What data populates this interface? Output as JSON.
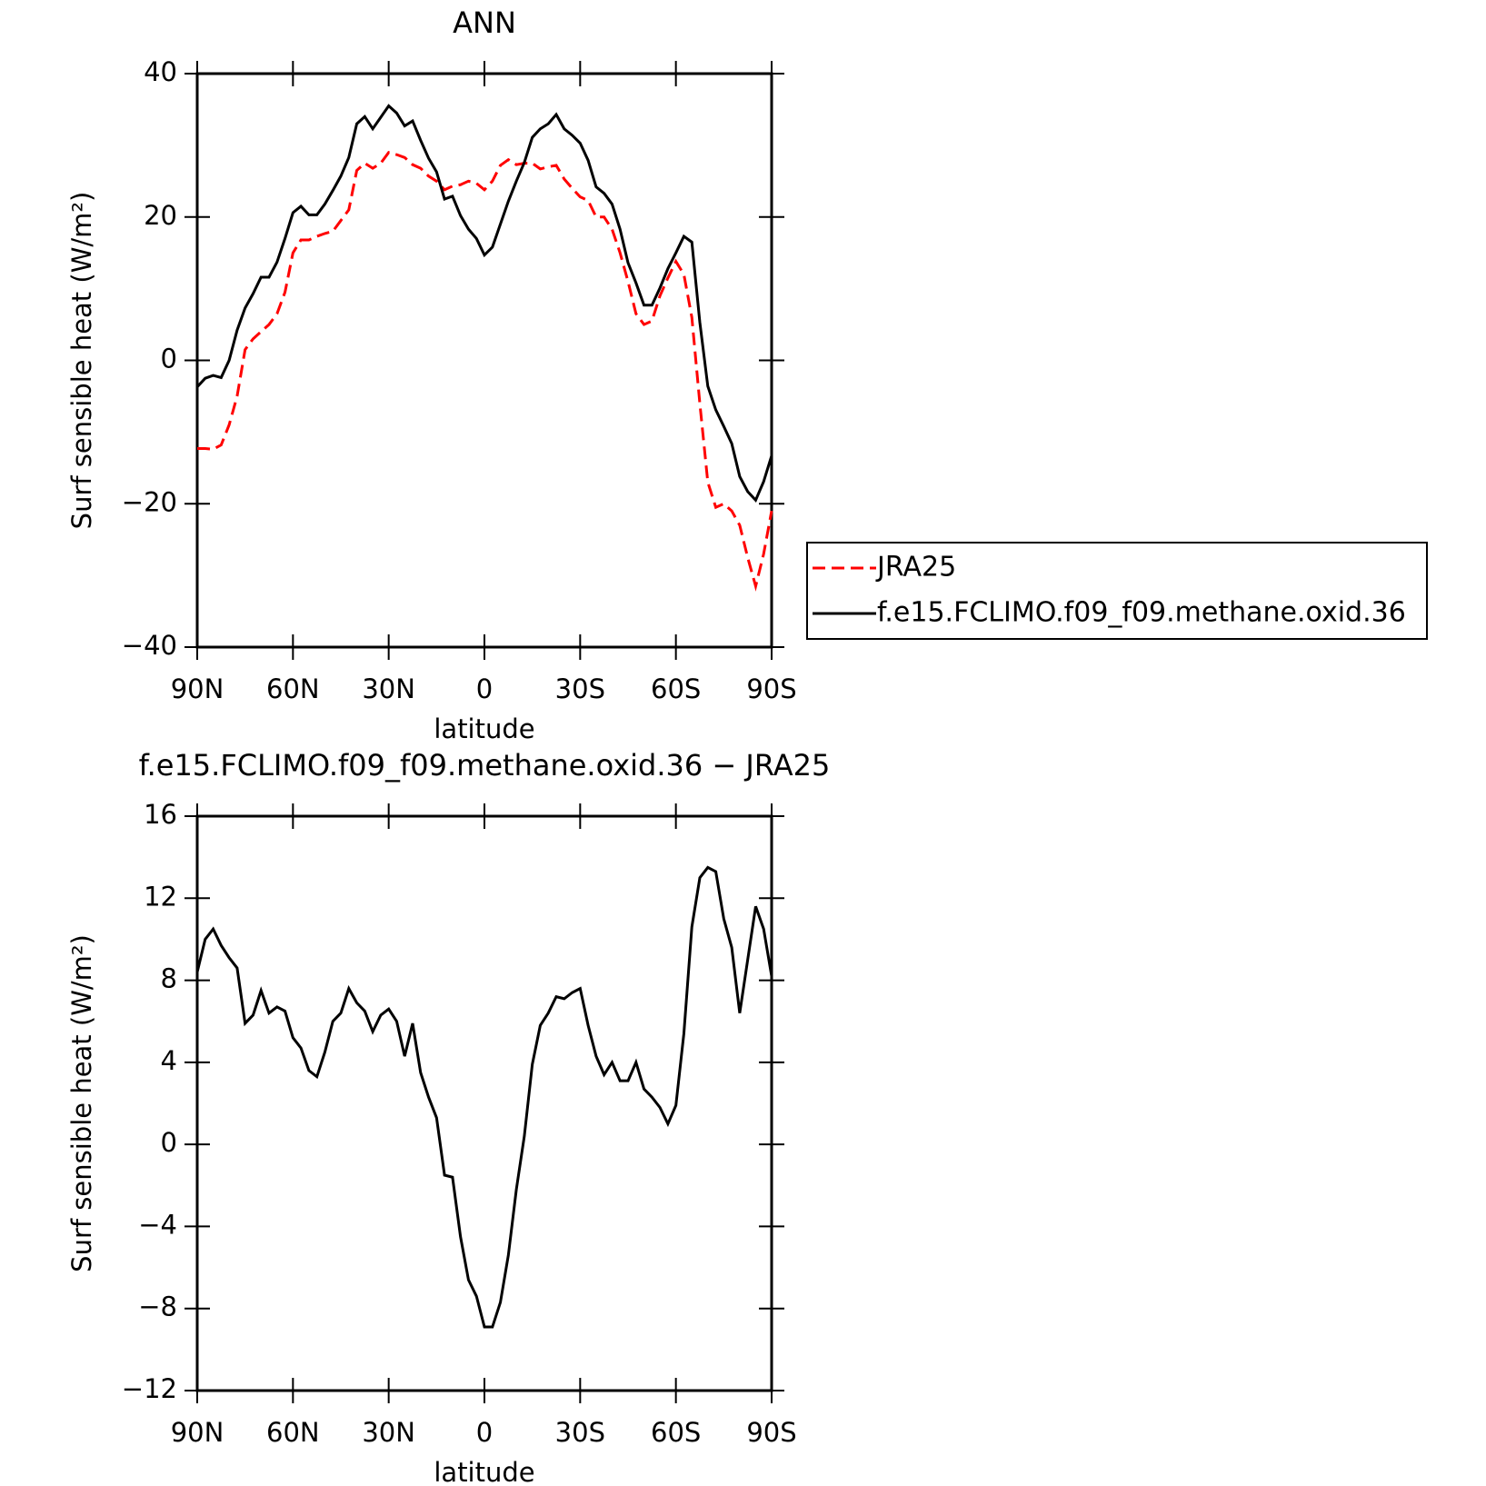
{
  "chart_data": [
    {
      "type": "line",
      "title": "ANN",
      "xlabel": "latitude",
      "ylabel": "Surf sensible heat (W/m²)",
      "x": [
        90,
        87.5,
        85,
        82.5,
        80,
        77.5,
        75,
        72.5,
        70,
        67.5,
        65,
        62.5,
        60,
        57.5,
        55,
        52.5,
        50,
        47.5,
        45,
        42.5,
        40,
        37.5,
        35,
        32.5,
        30,
        27.5,
        25,
        22.5,
        20,
        17.5,
        15,
        12.5,
        10,
        7.5,
        5,
        2.5,
        0,
        -2.5,
        -5,
        -7.5,
        -10,
        -12.5,
        -15,
        -17.5,
        -20,
        -22.5,
        -25,
        -27.5,
        -30,
        -32.5,
        -35,
        -37.5,
        -40,
        -42.5,
        -45,
        -47.5,
        -50,
        -52.5,
        -55,
        -57.5,
        -60,
        -62.5,
        -65,
        -67.5,
        -70,
        -72.5,
        -75,
        -77.5,
        -80,
        -82.5,
        -85,
        -87.5,
        -90
      ],
      "series": [
        {
          "name": "JRA25",
          "color": "#ff0000",
          "style": "dashed",
          "values": [
            -12.3,
            -12.3,
            -12.4,
            -11.8,
            -9,
            -5,
            1.5,
            3,
            4,
            5,
            6.5,
            9.5,
            15,
            16.8,
            16.8,
            17.3,
            17.7,
            18,
            19.5,
            21,
            26.5,
            27.5,
            26.8,
            27.5,
            29,
            28.7,
            28.3,
            27.3,
            26.8,
            25.7,
            25,
            23.8,
            24.3,
            24.5,
            25,
            24.7,
            23.8,
            25,
            27.2,
            28,
            27.3,
            27.5,
            27.5,
            26.7,
            27,
            27.2,
            25.3,
            24,
            22.8,
            22.3,
            20,
            20,
            18.3,
            15,
            11,
            6.5,
            5,
            5.5,
            9,
            11.5,
            13.8,
            12,
            6,
            -6,
            -17,
            -20.5,
            -20,
            -21,
            -23,
            -27.5,
            -31.5,
            -27,
            -21
          ]
        },
        {
          "name": "f.e15.FCLIMO.f09_f09.methane.oxid.36",
          "color": "#000000",
          "style": "solid",
          "values": [
            -3.7,
            -2.5,
            -2.1,
            -2.4,
            0,
            4.2,
            7.3,
            9.3,
            11.6,
            11.6,
            13.7,
            17,
            20.6,
            21.5,
            20.3,
            20.3,
            21.8,
            23.7,
            25.7,
            28.3,
            33,
            34,
            32.3,
            33.9,
            35.5,
            34.5,
            32.7,
            33.4,
            30.7,
            28.2,
            26.3,
            22.5,
            22.9,
            20.2,
            18.3,
            17,
            14.7,
            15.8,
            19,
            22.2,
            25,
            27.6,
            31.1,
            32.3,
            33,
            34.3,
            32.3,
            31.4,
            30.3,
            27.9,
            24.2,
            23.3,
            21.8,
            18.3,
            13.6,
            10.8,
            7.7,
            7.7,
            10.1,
            12.8,
            15,
            17.3,
            16.5,
            5.3,
            -3.6,
            -6.9,
            -9.2,
            -11.6,
            -16.2,
            -18.3,
            -19.5,
            -16.9,
            -13.3
          ]
        }
      ],
      "xlim": [
        90,
        -90
      ],
      "xticks": [
        {
          "value": 90,
          "label": "90N"
        },
        {
          "value": 60,
          "label": "60N"
        },
        {
          "value": 30,
          "label": "30N"
        },
        0,
        {
          "value": -30,
          "label": "30S"
        },
        {
          "value": -60,
          "label": "60S"
        },
        {
          "value": -90,
          "label": "90S"
        }
      ],
      "ylim": [
        -40,
        40
      ],
      "yticks": [
        {
          "value": -40,
          "label": "−40"
        },
        {
          "value": -20,
          "label": "−20"
        },
        0,
        20,
        40
      ],
      "legend": "right"
    },
    {
      "type": "line",
      "title": "f.e15.FCLIMO.f09_f09.methane.oxid.36 − JRA25",
      "xlabel": "latitude",
      "ylabel": "Surf sensible heat (W/m²)",
      "x": [
        90,
        87.5,
        85,
        82.5,
        80,
        77.5,
        75,
        72.5,
        70,
        67.5,
        65,
        62.5,
        60,
        57.5,
        55,
        52.5,
        50,
        47.5,
        45,
        42.5,
        40,
        37.5,
        35,
        32.5,
        30,
        27.5,
        25,
        22.5,
        20,
        17.5,
        15,
        12.5,
        10,
        7.5,
        5,
        2.5,
        0,
        -2.5,
        -5,
        -7.5,
        -10,
        -12.5,
        -15,
        -17.5,
        -20,
        -22.5,
        -25,
        -27.5,
        -30,
        -32.5,
        -35,
        -37.5,
        -40,
        -42.5,
        -45,
        -47.5,
        -50,
        -52.5,
        -55,
        -57.5,
        -60,
        -62.5,
        -65,
        -67.5,
        -70,
        -72.5,
        -75,
        -77.5,
        -80,
        -82.5,
        -85,
        -87.5,
        -90
      ],
      "series": [
        {
          "color": "#000000",
          "style": "solid",
          "values": [
            8.4,
            10,
            10.5,
            9.7,
            9.1,
            8.6,
            5.9,
            6.3,
            7.5,
            6.4,
            6.7,
            6.5,
            5.2,
            4.7,
            3.6,
            3.3,
            4.5,
            6,
            6.4,
            7.6,
            6.9,
            6.5,
            5.5,
            6.3,
            6.6,
            6,
            4.3,
            5.9,
            3.5,
            2.3,
            1.3,
            -1.5,
            -1.6,
            -4.5,
            -6.6,
            -7.4,
            -8.9,
            -8.9,
            -7.7,
            -5.4,
            -2.2,
            0.4,
            3.9,
            5.8,
            6.4,
            7.2,
            7.1,
            7.4,
            7.6,
            5.8,
            4.3,
            3.4,
            4,
            3.1,
            3.1,
            4,
            2.7,
            2.3,
            1.8,
            1,
            1.9,
            5.4,
            10.6,
            13,
            13.5,
            13.3,
            11,
            9.6,
            6.4,
            9,
            11.6,
            10.5,
            8.2
          ]
        }
      ],
      "xlim": [
        90,
        -90
      ],
      "xticks": [
        {
          "value": 90,
          "label": "90N"
        },
        {
          "value": 60,
          "label": "60N"
        },
        {
          "value": 30,
          "label": "30N"
        },
        0,
        {
          "value": -30,
          "label": "30S"
        },
        {
          "value": -60,
          "label": "60S"
        },
        {
          "value": -90,
          "label": "90S"
        }
      ],
      "ylim": [
        -12,
        16
      ],
      "yticks": [
        {
          "value": -12,
          "label": "−12"
        },
        {
          "value": -8,
          "label": "−8"
        },
        {
          "value": -4,
          "label": "−4"
        },
        0,
        4,
        8,
        12,
        16
      ]
    }
  ]
}
